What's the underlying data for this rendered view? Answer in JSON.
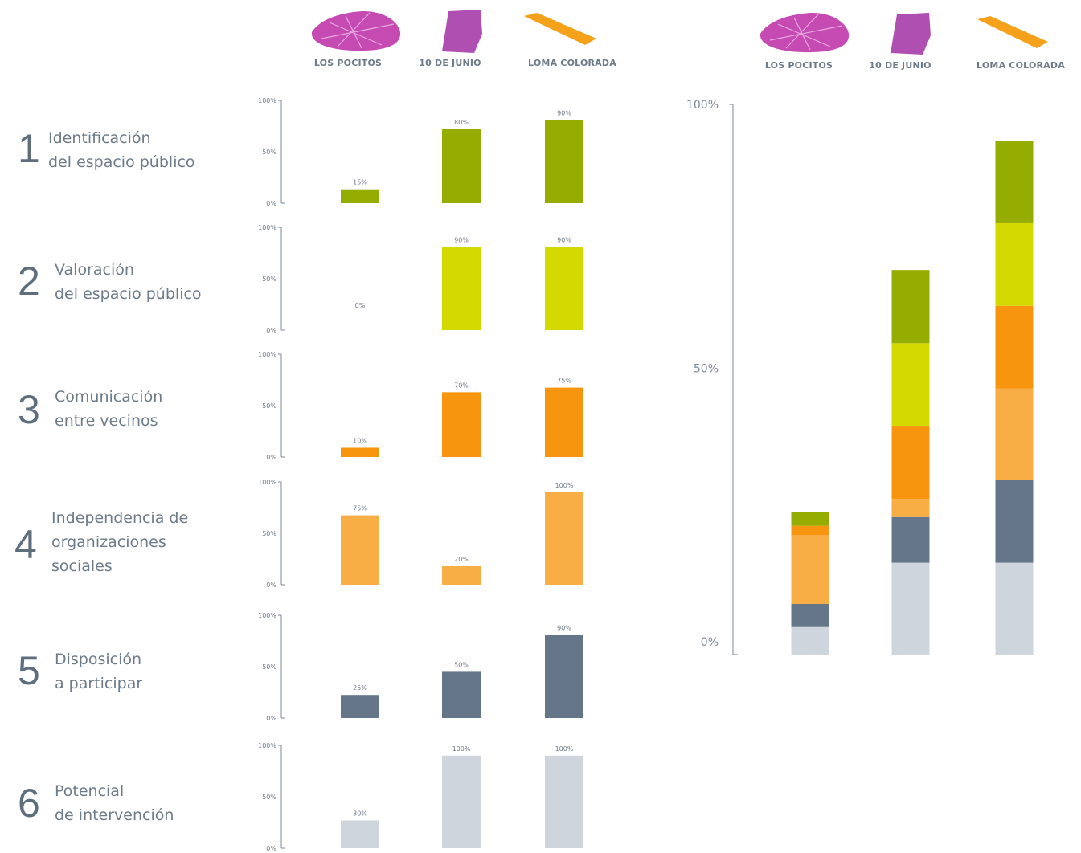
{
  "neighborhoods": [
    {
      "name": "LOS POCITOS",
      "color": "#c54bb3",
      "icon": "los-pocitos-map-icon"
    },
    {
      "name": "10 DE JUNIO",
      "color": "#b04fb2",
      "icon": "diez-de-junio-map-icon"
    },
    {
      "name": "LOMA COLORADA",
      "color": "#f5a21a",
      "icon": "loma-colorada-map-icon"
    }
  ],
  "right_header": [
    "LOS POCITOS",
    "10 DE JUNIO",
    "LOMA COLORADA"
  ],
  "indicators": [
    {
      "num": "1",
      "title": "Identificación\ndel espacio público"
    },
    {
      "num": "2",
      "title": "Valoración\ndel espacio público"
    },
    {
      "num": "3",
      "title": "Comunicación\nentre vecinos"
    },
    {
      "num": "4",
      "title": "Independencia de\norganizaciones\nsociales"
    },
    {
      "num": "5",
      "title": "Disposición\na participar"
    },
    {
      "num": "6",
      "title": "Potencial\nde intervención"
    }
  ],
  "chart_data": [
    {
      "type": "bar",
      "title": "",
      "categories": [
        "LOS POCITOS",
        "10 DE JUNIO",
        "LOMA COLORADA"
      ],
      "ylim": [
        0,
        100
      ],
      "y_ticks": [
        "0%",
        "50%",
        "100%"
      ],
      "panels": [
        {
          "indicator": "1",
          "color": "#95ad00",
          "values": [
            15,
            80,
            90
          ],
          "labels": [
            "15%",
            "80%",
            "90%"
          ]
        },
        {
          "indicator": "2",
          "color": "#d4da00",
          "values": [
            0,
            90,
            90
          ],
          "labels": [
            "0%",
            "90%",
            "90%"
          ]
        },
        {
          "indicator": "3",
          "color": "#f7950f",
          "values": [
            10,
            70,
            75
          ],
          "labels": [
            "10%",
            "70%",
            "75%"
          ]
        },
        {
          "indicator": "4",
          "color": "#f8ad45",
          "values": [
            75,
            20,
            100
          ],
          "labels": [
            "75%",
            "20%",
            "100%"
          ]
        },
        {
          "indicator": "5",
          "color": "#647687",
          "values": [
            25,
            50,
            90
          ],
          "labels": [
            "25%",
            "50%",
            "90%"
          ]
        },
        {
          "indicator": "6",
          "color": "#cfd5dc",
          "values": [
            30,
            100,
            100
          ],
          "labels": [
            "30%",
            "100%",
            "100%"
          ]
        }
      ]
    },
    {
      "type": "bar",
      "stacked": true,
      "title": "",
      "categories": [
        "LOS POCITOS",
        "10 DE JUNIO",
        "LOMA COLORADA"
      ],
      "ylim": [
        0,
        100
      ],
      "y_ticks": [
        "0%",
        "50%",
        "100%"
      ],
      "series": [
        {
          "indicator": "6",
          "color": "#cfd5dc",
          "values": [
            5,
            16.7,
            16.7
          ]
        },
        {
          "indicator": "5",
          "color": "#647687",
          "values": [
            4.2,
            8.3,
            15
          ]
        },
        {
          "indicator": "4",
          "color": "#f8ad45",
          "values": [
            12.5,
            3.3,
            16.7
          ]
        },
        {
          "indicator": "3",
          "color": "#f7950f",
          "values": [
            1.7,
            13.3,
            15
          ]
        },
        {
          "indicator": "2",
          "color": "#d4da00",
          "values": [
            0,
            15,
            15
          ]
        },
        {
          "indicator": "1",
          "color": "#95ad00",
          "values": [
            2.5,
            13.3,
            15
          ]
        }
      ]
    }
  ]
}
